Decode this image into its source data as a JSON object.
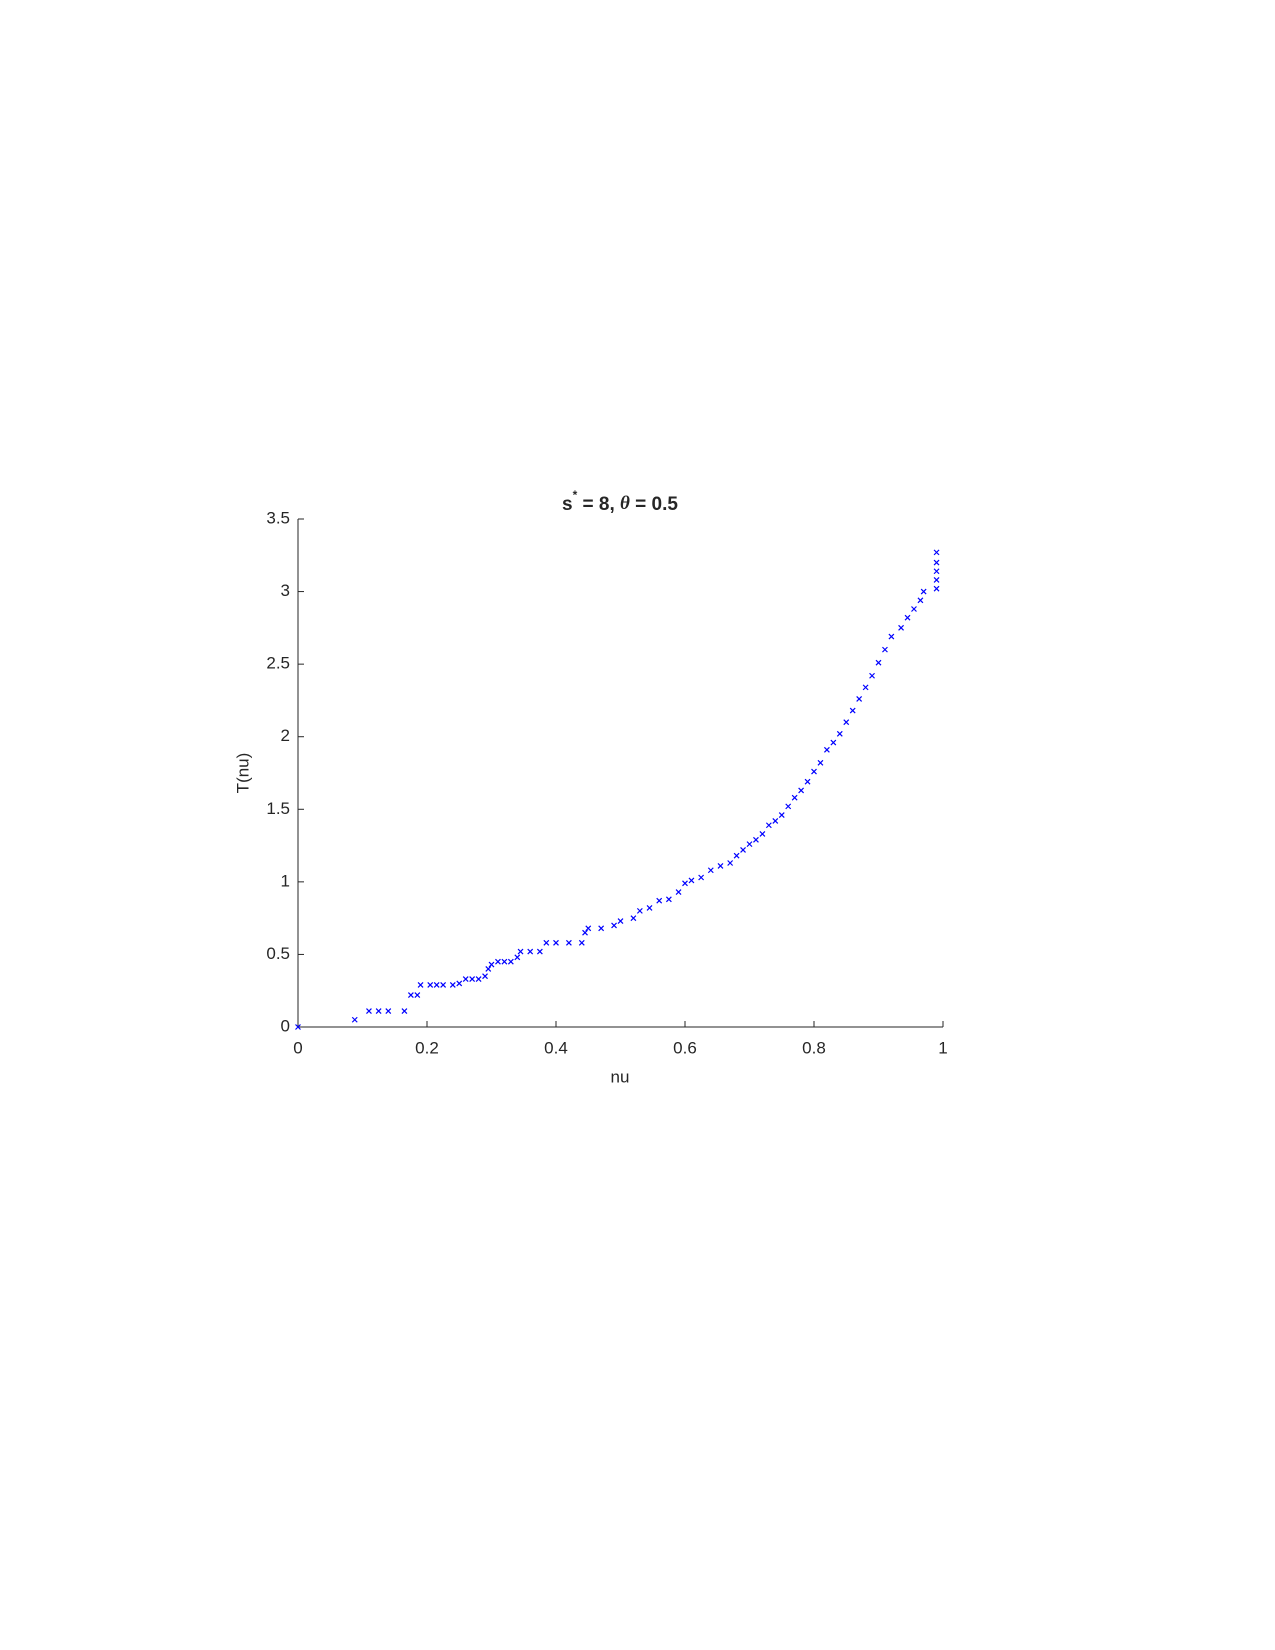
{
  "chart_data": {
    "type": "scatter",
    "title": [
      "s",
      "*",
      " = 8, ",
      "θ",
      " = 0.5"
    ],
    "x_label": "nu",
    "y_label": "T(nu)",
    "color": "#0000ff",
    "marker": "x",
    "x": [
      0,
      0.088,
      0.11,
      0.125,
      0.14,
      0.165,
      0.175,
      0.185,
      0.19,
      0.205,
      0.215,
      0.225,
      0.24,
      0.25,
      0.26,
      0.27,
      0.28,
      0.29,
      0.295,
      0.3,
      0.31,
      0.32,
      0.33,
      0.34,
      0.345,
      0.36,
      0.375,
      0.385,
      0.4,
      0.42,
      0.44,
      0.445,
      0.45,
      0.47,
      0.49,
      0.5,
      0.52,
      0.53,
      0.545,
      0.56,
      0.575,
      0.59,
      0.6,
      0.61,
      0.625,
      0.64,
      0.655,
      0.67,
      0.68,
      0.69,
      0.7,
      0.71,
      0.72,
      0.73,
      0.74,
      0.75,
      0.76,
      0.77,
      0.78,
      0.79,
      0.8,
      0.81,
      0.82,
      0.83,
      0.84,
      0.85,
      0.86,
      0.87,
      0.88,
      0.89,
      0.9,
      0.91,
      0.92,
      0.935,
      0.945,
      0.955,
      0.965,
      0.97,
      0.99,
      0.99,
      0.99,
      0.99,
      0.99
    ],
    "values": [
      0,
      0.05,
      0.11,
      0.11,
      0.11,
      0.11,
      0.22,
      0.22,
      0.29,
      0.29,
      0.29,
      0.29,
      0.29,
      0.3,
      0.33,
      0.33,
      0.33,
      0.35,
      0.4,
      0.43,
      0.45,
      0.45,
      0.45,
      0.48,
      0.52,
      0.52,
      0.52,
      0.58,
      0.58,
      0.58,
      0.58,
      0.65,
      0.68,
      0.68,
      0.7,
      0.73,
      0.75,
      0.8,
      0.82,
      0.87,
      0.88,
      0.93,
      0.99,
      1.01,
      1.03,
      1.08,
      1.11,
      1.13,
      1.18,
      1.22,
      1.26,
      1.29,
      1.33,
      1.39,
      1.42,
      1.46,
      1.52,
      1.58,
      1.63,
      1.69,
      1.76,
      1.82,
      1.91,
      1.96,
      2.02,
      2.1,
      2.18,
      2.26,
      2.34,
      2.42,
      2.51,
      2.6,
      2.69,
      2.75,
      2.82,
      2.88,
      2.94,
      3.0,
      3.02,
      3.08,
      3.14,
      3.2,
      3.27
    ],
    "xlim": [
      0,
      1
    ],
    "ylim": [
      0,
      3.5
    ],
    "xticks": [
      0,
      0.2,
      0.4,
      0.6,
      0.8,
      1
    ],
    "yticks": [
      0,
      0.5,
      1,
      1.5,
      2,
      2.5,
      3,
      3.5
    ]
  }
}
